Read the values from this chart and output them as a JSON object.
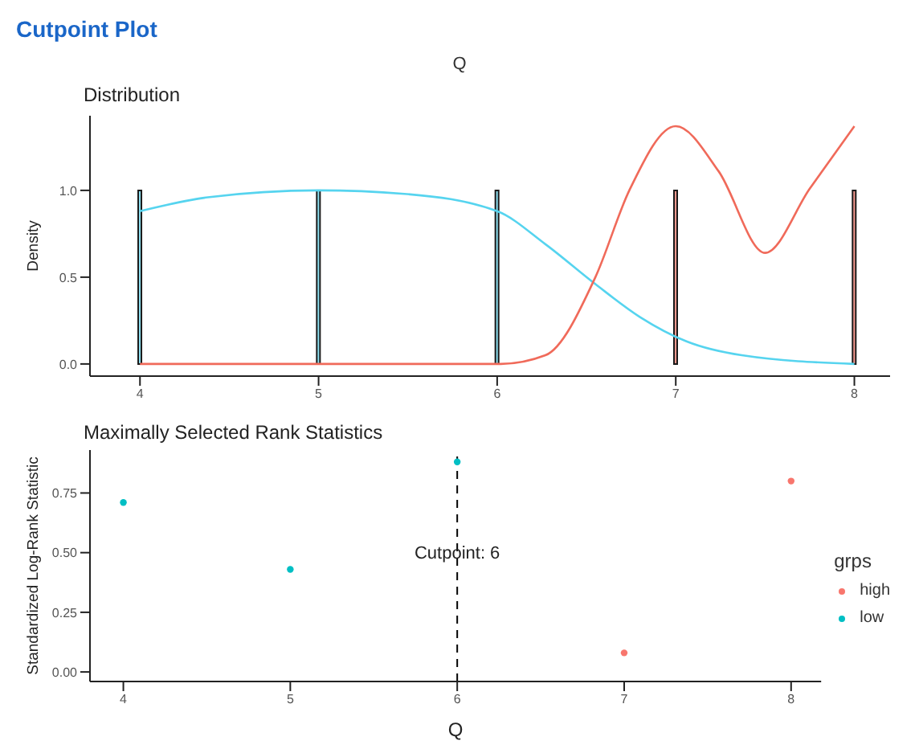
{
  "chart_data": [
    {
      "type": "bar",
      "title": "Cutpoint Plot",
      "subtitle": "Q",
      "annotations": [
        "Distribution"
      ],
      "ylabel": "Density",
      "xlim": [
        3.72,
        8.2
      ],
      "xticks": [
        4,
        5,
        6,
        7,
        8
      ],
      "ylim": [
        -0.07,
        1.43
      ],
      "yticks": [
        {
          "value": 0,
          "label": "0.0"
        },
        {
          "value": 0.5,
          "label": "0.5"
        },
        {
          "value": 1,
          "label": "1.0"
        }
      ],
      "grid": false,
      "series": [
        {
          "color": "#8ee1f2",
          "x": [
            4,
            5,
            6
          ],
          "values": [
            1,
            1,
            1
          ]
        },
        {
          "color": "#f99a90",
          "x": [
            7,
            8
          ],
          "values": [
            1,
            1
          ]
        },
        {
          "type": "line",
          "color": "#56d4ef",
          "x": [
            4,
            4.38,
            5,
            5.48,
            6,
            6.27,
            6.55,
            6.8,
            7.06,
            7.37,
            8
          ],
          "values": [
            0.88,
            0.96,
            1.0,
            0.98,
            0.88,
            0.69,
            0.46,
            0.27,
            0.13,
            0.05,
            0
          ]
        },
        {
          "type": "line",
          "color": "#f06a5a",
          "x": [
            4,
            5,
            6.02,
            6.27,
            6.55,
            6.74,
            7,
            7.24,
            7.5,
            7.75,
            8
          ],
          "values": [
            0,
            0,
            0,
            0.05,
            0.5,
            1.0,
            1.37,
            1.11,
            0.64,
            1.01,
            1.37
          ]
        }
      ]
    },
    {
      "type": "scatter",
      "title": "Maximally Selected Rank Statistics",
      "xlabel": "Q",
      "ylabel": "Standardized Log-Rank Statistic",
      "xlim": [
        3.8,
        8.18
      ],
      "xticks": [
        4,
        5,
        6,
        7,
        8
      ],
      "ylim": [
        -0.04,
        0.93
      ],
      "yticks": [
        {
          "value": 0,
          "label": "0.00"
        },
        {
          "value": 0.25,
          "label": "0.25"
        },
        {
          "value": 0.5,
          "label": "0.50"
        },
        {
          "value": 0.75,
          "label": "0.75"
        }
      ],
      "grid": false,
      "legend": "right",
      "legend_title": "grps",
      "marker": "circle",
      "series": [
        {
          "name": "high",
          "color": "#f8766d",
          "x": [
            7,
            8
          ],
          "values": [
            0.08,
            0.8
          ]
        },
        {
          "name": "low",
          "color": "#00bfc4",
          "x": [
            4,
            5,
            6
          ],
          "values": [
            0.71,
            0.43,
            0.88
          ]
        }
      ],
      "ref_lines": [
        {
          "axis": "x",
          "value": 6,
          "color": "#000000",
          "line_style": "dashed"
        }
      ],
      "annotations": [
        {
          "text": "Cutpoint: 6",
          "x": 6,
          "y": 0.5
        }
      ]
    }
  ]
}
